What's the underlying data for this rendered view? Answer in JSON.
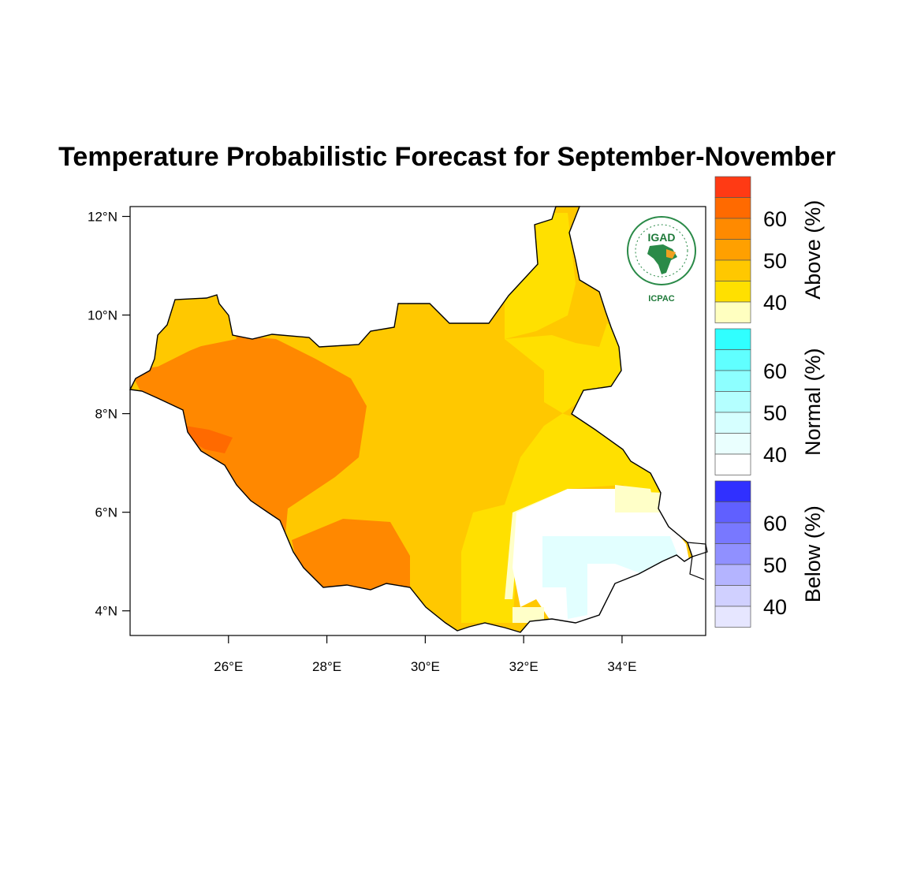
{
  "title": "Temperature Probabilistic Forecast for September-November",
  "axes": {
    "lat_ticks": [
      {
        "value": 12,
        "label": "12°N"
      },
      {
        "value": 10,
        "label": "10°N"
      },
      {
        "value": 8,
        "label": "8°N"
      },
      {
        "value": 6,
        "label": "6°N"
      },
      {
        "value": 4,
        "label": "4°N"
      }
    ],
    "lon_ticks": [
      {
        "value": 26,
        "label": "26°E"
      },
      {
        "value": 28,
        "label": "28°E"
      },
      {
        "value": 30,
        "label": "30°E"
      },
      {
        "value": 32,
        "label": "32°E"
      },
      {
        "value": 34,
        "label": "34°E"
      }
    ],
    "lon_range": [
      24.0,
      35.7
    ],
    "lat_range": [
      3.5,
      12.2
    ]
  },
  "colorbars": [
    {
      "name": "above",
      "title": "Above (%)",
      "labels": [
        "60",
        "50",
        "40"
      ],
      "colors": [
        "#ff3a14",
        "#ff6a00",
        "#ff8a00",
        "#ffa000",
        "#ffc800",
        "#ffe000",
        "#ffffc0"
      ]
    },
    {
      "name": "normal",
      "title": "Normal (%)",
      "labels": [
        "60",
        "50",
        "40"
      ],
      "colors": [
        "#30ffff",
        "#60ffff",
        "#8dffff",
        "#b4ffff",
        "#d6ffff",
        "#eafffe",
        "#ffffff"
      ]
    },
    {
      "name": "below",
      "title": "Below (%)",
      "labels": [
        "60",
        "50",
        "40"
      ],
      "colors": [
        "#3030ff",
        "#6060ff",
        "#7878ff",
        "#9090ff",
        "#b4b4ff",
        "#d0d0ff",
        "#e6e6ff"
      ]
    }
  ],
  "logo": {
    "top_text": "IGAD",
    "bottom_text": "ICPAC"
  },
  "colors": {
    "orange": "#ff8800",
    "dark_orange": "#ff6a00",
    "amber": "#ffc800",
    "yellow": "#ffe000",
    "pale": "#ffffc8",
    "light_cyan": "#e2ffff"
  }
}
